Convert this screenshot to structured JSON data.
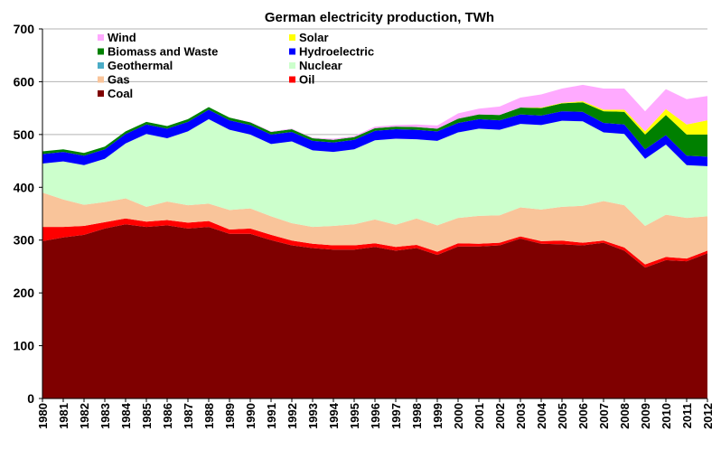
{
  "chart_data": {
    "type": "area",
    "stacked": true,
    "title": "German electricity production, TWh",
    "xlabel": "",
    "ylabel": "",
    "ylim": [
      0,
      700
    ],
    "yticks": [
      0,
      100,
      200,
      300,
      400,
      500,
      600,
      700
    ],
    "grid": "horizontal",
    "legend_position": "top-left",
    "x": [
      1980,
      1981,
      1982,
      1983,
      1984,
      1985,
      1986,
      1987,
      1988,
      1989,
      1990,
      1991,
      1992,
      1993,
      1994,
      1995,
      1996,
      1997,
      1998,
      1999,
      2000,
      2001,
      2002,
      2003,
      2004,
      2005,
      2006,
      2007,
      2008,
      2009,
      2010,
      2011,
      2012
    ],
    "series": [
      {
        "name": "Coal",
        "color": "#7f0000",
        "values": [
          298,
          305,
          310,
          322,
          330,
          325,
          328,
          322,
          325,
          312,
          312,
          300,
          290,
          285,
          282,
          282,
          287,
          280,
          285,
          272,
          288,
          288,
          290,
          303,
          293,
          292,
          290,
          295,
          280,
          248,
          262,
          260,
          275
        ]
      },
      {
        "name": "Oil",
        "color": "#ff0000",
        "values": [
          27,
          20,
          17,
          12,
          11,
          10,
          10,
          11,
          11,
          8,
          10,
          10,
          9,
          8,
          8,
          8,
          7,
          7,
          6,
          6,
          6,
          5,
          5,
          4,
          5,
          7,
          5,
          4,
          6,
          6,
          6,
          5,
          5
        ]
      },
      {
        "name": "Gas",
        "color": "#f9c49a",
        "values": [
          65,
          52,
          40,
          38,
          38,
          28,
          35,
          33,
          33,
          37,
          38,
          35,
          33,
          32,
          37,
          40,
          45,
          42,
          50,
          50,
          48,
          53,
          52,
          55,
          60,
          64,
          70,
          75,
          80,
          73,
          80,
          77,
          65
        ]
      },
      {
        "name": "Nuclear",
        "color": "#ccffcc",
        "values": [
          55,
          72,
          75,
          82,
          104,
          138,
          120,
          140,
          160,
          152,
          140,
          137,
          155,
          145,
          140,
          142,
          150,
          163,
          150,
          160,
          162,
          165,
          162,
          158,
          160,
          163,
          160,
          130,
          135,
          127,
          133,
          100,
          95
        ]
      },
      {
        "name": "Geothermal",
        "color": "#4bacc6",
        "values": [
          0,
          0,
          0,
          0,
          0,
          0,
          0,
          0,
          0,
          0,
          0,
          0,
          0,
          0,
          0,
          0,
          0,
          0,
          0,
          0,
          0,
          0,
          0,
          0,
          0,
          0,
          0,
          0,
          0,
          0,
          0,
          0,
          0
        ]
      },
      {
        "name": "Hydroelectric",
        "color": "#0000ff",
        "values": [
          18,
          18,
          18,
          18,
          18,
          18,
          18,
          18,
          18,
          18,
          18,
          18,
          18,
          18,
          18,
          18,
          18,
          18,
          18,
          18,
          18,
          18,
          18,
          18,
          18,
          18,
          18,
          18,
          18,
          18,
          18,
          18,
          18
        ]
      },
      {
        "name": "Biomass and Waste",
        "color": "#008000",
        "values": [
          5,
          5,
          5,
          5,
          5,
          5,
          5,
          5,
          5,
          5,
          5,
          5,
          5,
          5,
          5,
          5,
          5,
          5,
          5,
          5,
          8,
          9,
          10,
          13,
          14,
          15,
          18,
          22,
          24,
          28,
          38,
          40,
          42
        ]
      },
      {
        "name": "Solar",
        "color": "#ffff00",
        "values": [
          0,
          0,
          0,
          0,
          0,
          0,
          0,
          0,
          0,
          0,
          0,
          0,
          0,
          0,
          0,
          0,
          0,
          0,
          0,
          0,
          0,
          0,
          0,
          0,
          1,
          1,
          2,
          3,
          4,
          6,
          11,
          19,
          27
        ]
      },
      {
        "name": "Wind",
        "color": "#ffaaff",
        "values": [
          0,
          0,
          0,
          0,
          0,
          0,
          0,
          0,
          0,
          0,
          1,
          1,
          1,
          1,
          2,
          2,
          3,
          3,
          5,
          6,
          10,
          11,
          16,
          19,
          25,
          27,
          31,
          40,
          40,
          38,
          38,
          48,
          46
        ]
      }
    ]
  }
}
